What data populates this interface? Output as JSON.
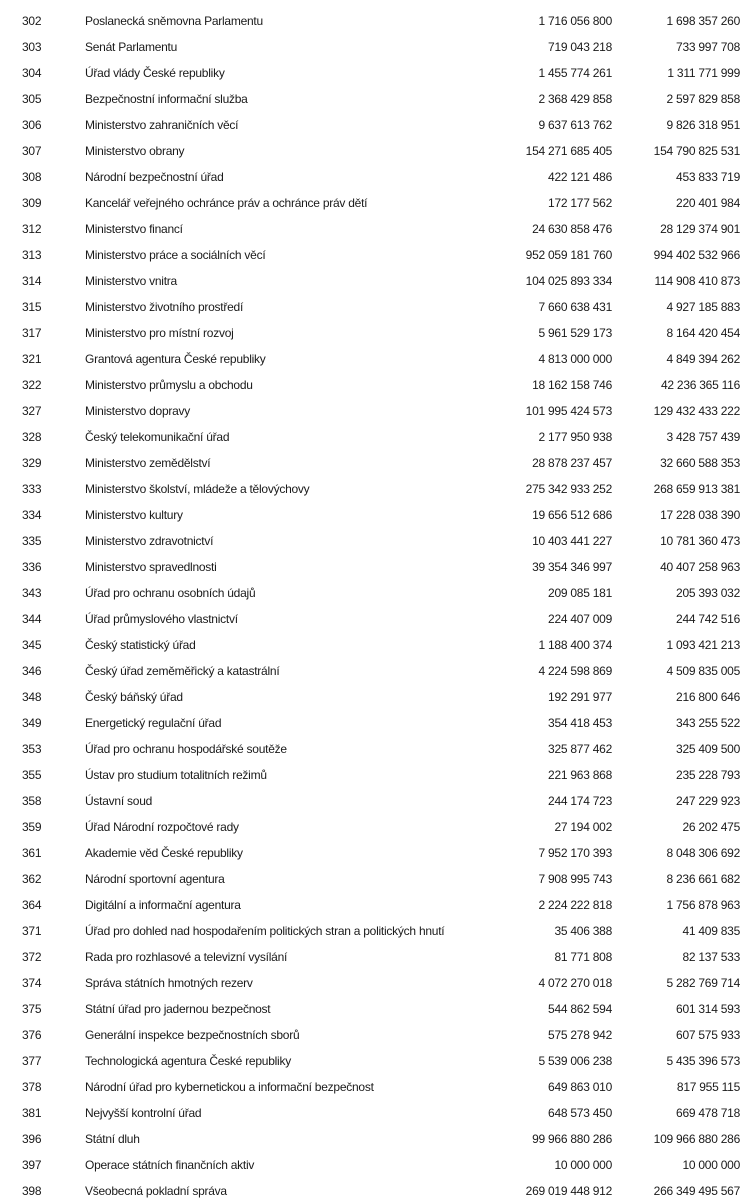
{
  "rows": [
    {
      "code": "302",
      "name": "Poslanecká sněmovna Parlamentu",
      "v1": "1 716 056 800",
      "v2": "1 698 357 260"
    },
    {
      "code": "303",
      "name": "Senát Parlamentu",
      "v1": "719 043 218",
      "v2": "733 997 708"
    },
    {
      "code": "304",
      "name": "Úřad vlády České republiky",
      "v1": "1 455 774 261",
      "v2": "1 311 771 999"
    },
    {
      "code": "305",
      "name": "Bezpečnostní informační služba",
      "v1": "2 368 429 858",
      "v2": "2 597 829 858"
    },
    {
      "code": "306",
      "name": "Ministerstvo zahraničních věcí",
      "v1": "9 637 613 762",
      "v2": "9 826 318 951"
    },
    {
      "code": "307",
      "name": "Ministerstvo obrany",
      "v1": "154 271 685 405",
      "v2": "154 790 825 531"
    },
    {
      "code": "308",
      "name": "Národní bezpečnostní úřad",
      "v1": "422 121 486",
      "v2": "453 833 719"
    },
    {
      "code": "309",
      "name": "Kancelář veřejného ochránce práv a ochránce práv dětí",
      "v1": "172 177 562",
      "v2": "220 401 984"
    },
    {
      "code": "312",
      "name": "Ministerstvo financí",
      "v1": "24 630 858 476",
      "v2": "28 129 374 901"
    },
    {
      "code": "313",
      "name": "Ministerstvo práce a sociálních věcí",
      "v1": "952 059 181 760",
      "v2": "994 402 532 966"
    },
    {
      "code": "314",
      "name": "Ministerstvo vnitra",
      "v1": "104 025 893 334",
      "v2": "114 908 410 873"
    },
    {
      "code": "315",
      "name": "Ministerstvo životního prostředí",
      "v1": "7 660 638 431",
      "v2": "4 927 185 883"
    },
    {
      "code": "317",
      "name": "Ministerstvo pro místní rozvoj",
      "v1": "5 961 529 173",
      "v2": "8 164 420 454"
    },
    {
      "code": "321",
      "name": "Grantová agentura České republiky",
      "v1": "4 813 000 000",
      "v2": "4 849 394 262"
    },
    {
      "code": "322",
      "name": "Ministerstvo průmyslu a obchodu",
      "v1": "18 162 158 746",
      "v2": "42 236 365 116"
    },
    {
      "code": "327",
      "name": "Ministerstvo dopravy",
      "v1": "101 995 424 573",
      "v2": "129 432 433 222"
    },
    {
      "code": "328",
      "name": "Český telekomunikační úřad",
      "v1": "2 177 950 938",
      "v2": "3 428 757 439"
    },
    {
      "code": "329",
      "name": "Ministerstvo zemědělství",
      "v1": "28 878 237 457",
      "v2": "32 660 588 353"
    },
    {
      "code": "333",
      "name": "Ministerstvo školství, mládeže a tělovýchovy",
      "v1": "275 342 933 252",
      "v2": "268 659 913 381"
    },
    {
      "code": "334",
      "name": "Ministerstvo kultury",
      "v1": "19 656 512 686",
      "v2": "17 228 038 390"
    },
    {
      "code": "335",
      "name": "Ministerstvo zdravotnictví",
      "v1": "10 403 441 227",
      "v2": "10 781 360 473"
    },
    {
      "code": "336",
      "name": "Ministerstvo spravedlnosti",
      "v1": "39 354 346 997",
      "v2": "40 407 258 963"
    },
    {
      "code": "343",
      "name": "Úřad pro ochranu osobních údajů",
      "v1": "209 085 181",
      "v2": "205 393 032"
    },
    {
      "code": "344",
      "name": "Úřad průmyslového vlastnictví",
      "v1": "224 407 009",
      "v2": "244 742 516"
    },
    {
      "code": "345",
      "name": "Český statistický úřad",
      "v1": "1 188 400 374",
      "v2": "1 093 421 213"
    },
    {
      "code": "346",
      "name": "Český úřad zeměměřický a katastrální",
      "v1": "4 224 598 869",
      "v2": "4 509 835 005"
    },
    {
      "code": "348",
      "name": "Český báňský úřad",
      "v1": "192 291 977",
      "v2": "216 800 646"
    },
    {
      "code": "349",
      "name": "Energetický regulační úřad",
      "v1": "354 418 453",
      "v2": "343 255 522"
    },
    {
      "code": "353",
      "name": "Úřad pro ochranu hospodářské soutěže",
      "v1": "325 877 462",
      "v2": "325 409 500"
    },
    {
      "code": "355",
      "name": "Ústav pro studium totalitních režimů",
      "v1": "221 963 868",
      "v2": "235 228 793"
    },
    {
      "code": "358",
      "name": "Ústavní soud",
      "v1": "244 174 723",
      "v2": "247 229 923"
    },
    {
      "code": "359",
      "name": "Úřad Národní rozpočtové rady",
      "v1": "27 194 002",
      "v2": "26 202 475"
    },
    {
      "code": "361",
      "name": "Akademie věd České republiky",
      "v1": "7 952 170 393",
      "v2": "8 048 306 692"
    },
    {
      "code": "362",
      "name": "Národní sportovní agentura",
      "v1": "7 908 995 743",
      "v2": "8 236 661 682"
    },
    {
      "code": "364",
      "name": "Digitální a informační agentura",
      "v1": "2 224 222 818",
      "v2": "1 756 878 963"
    },
    {
      "code": "371",
      "name": "Úřad pro dohled nad hospodařením politických stran a politických hnutí",
      "v1": "35 406 388",
      "v2": "41 409 835"
    },
    {
      "code": "372",
      "name": "Rada pro rozhlasové a televizní vysílání",
      "v1": "81 771 808",
      "v2": "82 137 533"
    },
    {
      "code": "374",
      "name": "Správa státních hmotných rezerv",
      "v1": "4 072 270 018",
      "v2": "5 282 769 714"
    },
    {
      "code": "375",
      "name": "Státní úřad pro jadernou bezpečnost",
      "v1": "544 862 594",
      "v2": "601 314 593"
    },
    {
      "code": "376",
      "name": "Generální inspekce bezpečnostních sborů",
      "v1": "575 278 942",
      "v2": "607 575 933"
    },
    {
      "code": "377",
      "name": "Technologická agentura České republiky",
      "v1": "5 539 006 238",
      "v2": "5 435 396 573"
    },
    {
      "code": "378",
      "name": "Národní úřad pro kybernetickou a informační bezpečnost",
      "v1": "649 863 010",
      "v2": "817 955 115"
    },
    {
      "code": "381",
      "name": "Nejvyšší kontrolní úřad",
      "v1": "648 573 450",
      "v2": "669 478 718"
    },
    {
      "code": "396",
      "name": "Státní dluh",
      "v1": "99 966 880 286",
      "v2": "109 966 880 286"
    },
    {
      "code": "397",
      "name": "Operace státních finančních aktiv",
      "v1": "10 000 000",
      "v2": "10 000 000"
    },
    {
      "code": "398",
      "name": "Všeobecná pokladní správa",
      "v1": "269 019 448 912",
      "v2": "266 349 495 567"
    }
  ]
}
